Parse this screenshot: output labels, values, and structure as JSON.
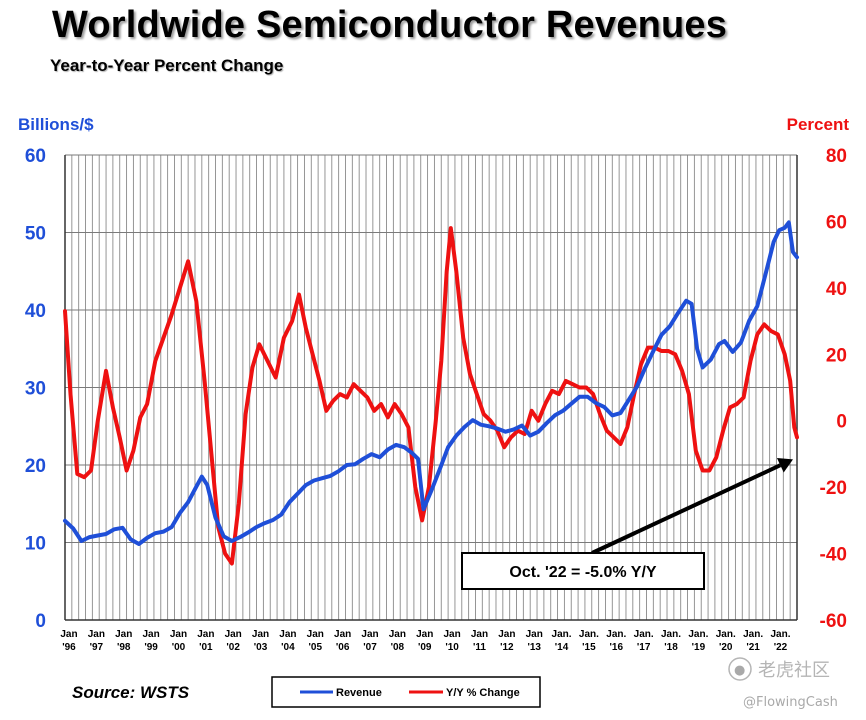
{
  "title": "Worldwide Semiconductor Revenues",
  "subtitle": "Year-to-Year Percent Change",
  "source": "Source: WSTS",
  "watermark": {
    "logo": "老虎社区",
    "handle": "@FlowingCash"
  },
  "chart_data": {
    "type": "line",
    "y_left": {
      "label": "Billions/$",
      "range": [
        0,
        60
      ],
      "ticks": [
        "0",
        "10",
        "20",
        "30",
        "40",
        "50",
        "60"
      ],
      "color": "#1f4fd8"
    },
    "y_right": {
      "label": "Percent",
      "range": [
        -60,
        80
      ],
      "ticks": [
        "-60",
        "-40",
        "-20",
        "0",
        "20",
        "40",
        "60",
        "80"
      ],
      "color": "#ee1111"
    },
    "x_range": [
      1996.0,
      2022.75
    ],
    "x_ticks": [
      {
        "x": 1996,
        "top": "Jan",
        "bottom": "'96"
      },
      {
        "x": 1997,
        "top": "Jan",
        "bottom": "'97"
      },
      {
        "x": 1998,
        "top": "Jan",
        "bottom": "'98"
      },
      {
        "x": 1999,
        "top": "Jan",
        "bottom": "'99"
      },
      {
        "x": 2000,
        "top": "Jan",
        "bottom": "'00"
      },
      {
        "x": 2001,
        "top": "Jan",
        "bottom": "'01"
      },
      {
        "x": 2002,
        "top": "Jan",
        "bottom": "'02"
      },
      {
        "x": 2003,
        "top": "Jan",
        "bottom": "'03"
      },
      {
        "x": 2004,
        "top": "Jan",
        "bottom": "'04"
      },
      {
        "x": 2005,
        "top": "Jan",
        "bottom": "'05"
      },
      {
        "x": 2006,
        "top": "Jan",
        "bottom": "'06"
      },
      {
        "x": 2007,
        "top": "Jan",
        "bottom": "'07"
      },
      {
        "x": 2008,
        "top": "Jan",
        "bottom": "'08"
      },
      {
        "x": 2009,
        "top": "Jan",
        "bottom": "'09"
      },
      {
        "x": 2010,
        "top": "Jan",
        "bottom": "'10"
      },
      {
        "x": 2011,
        "top": "Jan",
        "bottom": "'11"
      },
      {
        "x": 2012,
        "top": "Jan",
        "bottom": "'12"
      },
      {
        "x": 2013,
        "top": "Jan",
        "bottom": "'13"
      },
      {
        "x": 2014,
        "top": "Jan.",
        "bottom": "'14"
      },
      {
        "x": 2015,
        "top": "Jan.",
        "bottom": "'15"
      },
      {
        "x": 2016,
        "top": "Jan.",
        "bottom": "'16"
      },
      {
        "x": 2017,
        "top": "Jan.",
        "bottom": "'17"
      },
      {
        "x": 2018,
        "top": "Jan.",
        "bottom": "'18"
      },
      {
        "x": 2019,
        "top": "Jan.",
        "bottom": "'19"
      },
      {
        "x": 2020,
        "top": "Jan.",
        "bottom": "'20"
      },
      {
        "x": 2021,
        "top": "Jan.",
        "bottom": "'21"
      },
      {
        "x": 2022,
        "top": "Jan.",
        "bottom": "'22"
      }
    ],
    "grid": true,
    "legend": {
      "placement": "bottom-center"
    },
    "series": [
      {
        "name": "Revenue",
        "axis": "left",
        "color": "#1f4fd8",
        "points": [
          [
            1996.0,
            12.8
          ],
          [
            1996.3,
            11.8
          ],
          [
            1996.6,
            10.2
          ],
          [
            1996.9,
            10.7
          ],
          [
            1997.2,
            10.9
          ],
          [
            1997.5,
            11.1
          ],
          [
            1997.8,
            11.7
          ],
          [
            1998.1,
            11.9
          ],
          [
            1998.4,
            10.4
          ],
          [
            1998.7,
            9.8
          ],
          [
            1999.0,
            10.6
          ],
          [
            1999.3,
            11.2
          ],
          [
            1999.6,
            11.4
          ],
          [
            1999.9,
            12.0
          ],
          [
            2000.2,
            13.8
          ],
          [
            2000.5,
            15.2
          ],
          [
            2000.8,
            17.2
          ],
          [
            2001.0,
            18.5
          ],
          [
            2001.2,
            17.4
          ],
          [
            2001.5,
            13.2
          ],
          [
            2001.8,
            10.8
          ],
          [
            2002.1,
            10.2
          ],
          [
            2002.4,
            10.7
          ],
          [
            2002.7,
            11.3
          ],
          [
            2003.0,
            12.0
          ],
          [
            2003.3,
            12.5
          ],
          [
            2003.6,
            12.9
          ],
          [
            2003.9,
            13.6
          ],
          [
            2004.2,
            15.2
          ],
          [
            2004.5,
            16.3
          ],
          [
            2004.8,
            17.4
          ],
          [
            2005.1,
            18.0
          ],
          [
            2005.4,
            18.3
          ],
          [
            2005.7,
            18.6
          ],
          [
            2006.0,
            19.2
          ],
          [
            2006.3,
            20.0
          ],
          [
            2006.6,
            20.1
          ],
          [
            2006.9,
            20.8
          ],
          [
            2007.2,
            21.4
          ],
          [
            2007.5,
            21.0
          ],
          [
            2007.8,
            22.0
          ],
          [
            2008.1,
            22.6
          ],
          [
            2008.4,
            22.3
          ],
          [
            2008.7,
            21.5
          ],
          [
            2008.9,
            20.8
          ],
          [
            2009.1,
            14.3
          ],
          [
            2009.4,
            16.8
          ],
          [
            2009.7,
            19.5
          ],
          [
            2010.0,
            22.3
          ],
          [
            2010.3,
            23.8
          ],
          [
            2010.6,
            24.9
          ],
          [
            2010.9,
            25.8
          ],
          [
            2011.2,
            25.2
          ],
          [
            2011.5,
            25.0
          ],
          [
            2011.8,
            24.7
          ],
          [
            2012.1,
            24.3
          ],
          [
            2012.4,
            24.6
          ],
          [
            2012.7,
            25.1
          ],
          [
            2013.0,
            23.8
          ],
          [
            2013.3,
            24.3
          ],
          [
            2013.6,
            25.4
          ],
          [
            2013.9,
            26.4
          ],
          [
            2014.2,
            27.0
          ],
          [
            2014.5,
            27.9
          ],
          [
            2014.8,
            28.8
          ],
          [
            2015.1,
            28.8
          ],
          [
            2015.4,
            28.0
          ],
          [
            2015.7,
            27.5
          ],
          [
            2016.0,
            26.4
          ],
          [
            2016.3,
            26.7
          ],
          [
            2016.6,
            28.4
          ],
          [
            2016.9,
            30.1
          ],
          [
            2017.2,
            32.5
          ],
          [
            2017.5,
            34.7
          ],
          [
            2017.8,
            36.8
          ],
          [
            2018.1,
            37.9
          ],
          [
            2018.4,
            39.6
          ],
          [
            2018.7,
            41.2
          ],
          [
            2018.9,
            40.8
          ],
          [
            2019.1,
            35.0
          ],
          [
            2019.3,
            32.6
          ],
          [
            2019.6,
            33.6
          ],
          [
            2019.9,
            35.6
          ],
          [
            2020.1,
            36.0
          ],
          [
            2020.4,
            34.6
          ],
          [
            2020.7,
            35.8
          ],
          [
            2021.0,
            38.6
          ],
          [
            2021.3,
            40.5
          ],
          [
            2021.6,
            44.6
          ],
          [
            2021.9,
            48.8
          ],
          [
            2022.1,
            50.3
          ],
          [
            2022.3,
            50.6
          ],
          [
            2022.45,
            51.3
          ],
          [
            2022.6,
            47.5
          ],
          [
            2022.75,
            46.8
          ]
        ]
      },
      {
        "name": "Y/Y % Change",
        "axis": "right",
        "color": "#ee1111",
        "points": [
          [
            1996.0,
            33.0
          ],
          [
            1996.2,
            8.0
          ],
          [
            1996.45,
            -16.0
          ],
          [
            1996.7,
            -17.0
          ],
          [
            1996.95,
            -15.0
          ],
          [
            1997.2,
            0.0
          ],
          [
            1997.5,
            15.0
          ],
          [
            1997.75,
            4.0
          ],
          [
            1998.0,
            -5.0
          ],
          [
            1998.25,
            -15.0
          ],
          [
            1998.5,
            -9.0
          ],
          [
            1998.75,
            1.0
          ],
          [
            1999.0,
            5.0
          ],
          [
            1999.3,
            18.0
          ],
          [
            1999.6,
            25.0
          ],
          [
            1999.9,
            32.0
          ],
          [
            2000.2,
            40.0
          ],
          [
            2000.5,
            48.0
          ],
          [
            2000.8,
            36.0
          ],
          [
            2001.1,
            12.0
          ],
          [
            2001.35,
            -10.0
          ],
          [
            2001.6,
            -32.0
          ],
          [
            2001.85,
            -40.0
          ],
          [
            2002.1,
            -43.0
          ],
          [
            2002.35,
            -25.0
          ],
          [
            2002.6,
            2.0
          ],
          [
            2002.85,
            16.0
          ],
          [
            2003.1,
            23.0
          ],
          [
            2003.4,
            18.0
          ],
          [
            2003.7,
            13.0
          ],
          [
            2004.0,
            25.0
          ],
          [
            2004.3,
            30.0
          ],
          [
            2004.55,
            38.0
          ],
          [
            2004.8,
            28.0
          ],
          [
            2005.05,
            20.0
          ],
          [
            2005.3,
            12.0
          ],
          [
            2005.55,
            3.0
          ],
          [
            2005.8,
            6.0
          ],
          [
            2006.05,
            8.0
          ],
          [
            2006.3,
            7.0
          ],
          [
            2006.55,
            11.0
          ],
          [
            2006.8,
            9.0
          ],
          [
            2007.05,
            7.0
          ],
          [
            2007.3,
            3.0
          ],
          [
            2007.55,
            5.0
          ],
          [
            2007.8,
            1.0
          ],
          [
            2008.05,
            5.0
          ],
          [
            2008.3,
            2.0
          ],
          [
            2008.55,
            -2.0
          ],
          [
            2008.8,
            -20.0
          ],
          [
            2009.05,
            -30.0
          ],
          [
            2009.3,
            -20.0
          ],
          [
            2009.55,
            0.0
          ],
          [
            2009.75,
            18.0
          ],
          [
            2009.95,
            45.0
          ],
          [
            2010.1,
            58.0
          ],
          [
            2010.3,
            45.0
          ],
          [
            2010.55,
            25.0
          ],
          [
            2010.8,
            14.0
          ],
          [
            2011.05,
            8.0
          ],
          [
            2011.3,
            2.0
          ],
          [
            2011.55,
            0.0
          ],
          [
            2011.8,
            -3.0
          ],
          [
            2012.05,
            -8.0
          ],
          [
            2012.3,
            -5.0
          ],
          [
            2012.55,
            -3.0
          ],
          [
            2012.8,
            -4.0
          ],
          [
            2013.05,
            3.0
          ],
          [
            2013.3,
            0.0
          ],
          [
            2013.55,
            5.0
          ],
          [
            2013.8,
            9.0
          ],
          [
            2014.05,
            8.0
          ],
          [
            2014.3,
            12.0
          ],
          [
            2014.55,
            11.0
          ],
          [
            2014.8,
            10.0
          ],
          [
            2015.05,
            10.0
          ],
          [
            2015.3,
            8.0
          ],
          [
            2015.55,
            2.0
          ],
          [
            2015.8,
            -3.0
          ],
          [
            2016.05,
            -5.0
          ],
          [
            2016.3,
            -7.0
          ],
          [
            2016.55,
            -2.0
          ],
          [
            2016.8,
            8.0
          ],
          [
            2017.05,
            17.0
          ],
          [
            2017.3,
            22.0
          ],
          [
            2017.55,
            22.0
          ],
          [
            2017.8,
            21.0
          ],
          [
            2018.05,
            21.0
          ],
          [
            2018.3,
            20.0
          ],
          [
            2018.55,
            15.0
          ],
          [
            2018.8,
            8.0
          ],
          [
            2019.05,
            -9.0
          ],
          [
            2019.3,
            -15.0
          ],
          [
            2019.55,
            -15.0
          ],
          [
            2019.8,
            -11.0
          ],
          [
            2020.05,
            -3.0
          ],
          [
            2020.3,
            4.0
          ],
          [
            2020.55,
            5.0
          ],
          [
            2020.8,
            7.0
          ],
          [
            2021.05,
            18.0
          ],
          [
            2021.3,
            26.0
          ],
          [
            2021.55,
            29.0
          ],
          [
            2021.8,
            27.0
          ],
          [
            2022.05,
            26.0
          ],
          [
            2022.3,
            20.0
          ],
          [
            2022.5,
            12.0
          ],
          [
            2022.65,
            -2.0
          ],
          [
            2022.75,
            -5.0
          ]
        ]
      }
    ],
    "annotation": {
      "text": "Oct. '22 = -5.0% Y/Y",
      "target": {
        "x": 2022.75,
        "y_right": -5.0
      }
    }
  }
}
